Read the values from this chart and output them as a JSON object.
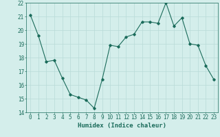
{
  "x": [
    0,
    1,
    2,
    3,
    4,
    5,
    6,
    7,
    8,
    9,
    10,
    11,
    12,
    13,
    14,
    15,
    16,
    17,
    18,
    19,
    20,
    21,
    22,
    23
  ],
  "y": [
    21.1,
    19.6,
    17.7,
    17.8,
    16.5,
    15.3,
    15.1,
    14.9,
    14.3,
    16.4,
    18.9,
    18.8,
    19.5,
    19.7,
    20.6,
    20.6,
    20.5,
    22.0,
    20.3,
    20.9,
    19.0,
    18.9,
    17.4,
    16.4
  ],
  "xlim": [
    -0.5,
    23.5
  ],
  "ylim": [
    14,
    22
  ],
  "yticks": [
    14,
    15,
    16,
    17,
    18,
    19,
    20,
    21,
    22
  ],
  "xticks": [
    0,
    1,
    2,
    3,
    4,
    5,
    6,
    7,
    8,
    9,
    10,
    11,
    12,
    13,
    14,
    15,
    16,
    17,
    18,
    19,
    20,
    21,
    22,
    23
  ],
  "line_color": "#1a6b5a",
  "marker": "D",
  "marker_size": 1.8,
  "line_width": 0.8,
  "bg_color": "#d4eeeb",
  "grid_color": "#b8dbd7",
  "xlabel": "Humidex (Indice chaleur)",
  "xlabel_fontsize": 6.5,
  "tick_fontsize": 5.5,
  "tick_color": "#1a6b5a"
}
